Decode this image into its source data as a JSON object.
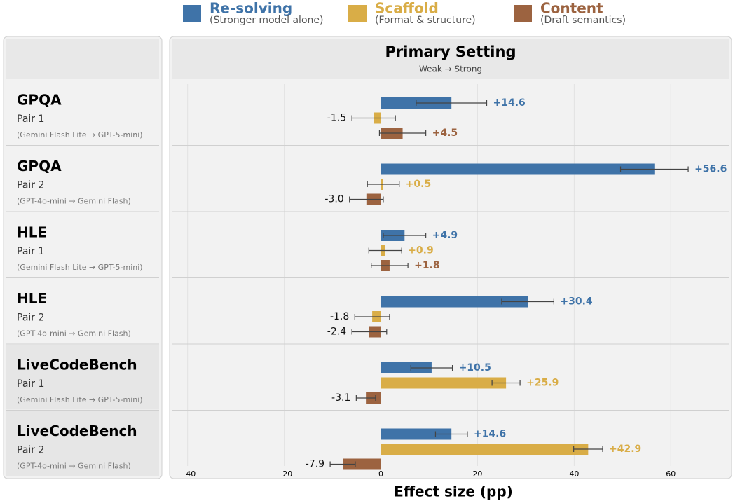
{
  "chart_data": {
    "type": "bar",
    "orientation": "horizontal",
    "title": "Primary Setting",
    "subtitle": "Weak → Strong",
    "xlabel": "Effect size (pp)",
    "categories": [
      "GPQA",
      "GPQA",
      "HLE",
      "HLE",
      "LiveCodeBench",
      "LiveCodeBench"
    ],
    "pairs": [
      "Pair 1",
      "Pair 2",
      "Pair 1",
      "Pair 2",
      "Pair 1",
      "Pair 2"
    ],
    "models": [
      "(Gemini Flash Lite → GPT-5-mini)",
      "(GPT-4o-mini → Gemini Flash)",
      "(Gemini Flash Lite → GPT-5-mini)",
      "(GPT-4o-mini → Gemini Flash)",
      "(Gemini Flash Lite → GPT-5-mini)",
      "(GPT-4o-mini → Gemini Flash)"
    ],
    "series": [
      {
        "name": "Re-solving",
        "description": "(Stronger model alone)",
        "color": "#3f73a8",
        "values": [
          14.6,
          56.6,
          4.9,
          30.4,
          10.5,
          14.6
        ],
        "errors": [
          7.3,
          7,
          4.4,
          5.4,
          4.3,
          3.3
        ],
        "value_labels": [
          "+14.6",
          "+56.6",
          "+4.9",
          "+30.4",
          "+10.5",
          "+14.6"
        ]
      },
      {
        "name": "Scaffold",
        "description": "(Format & structure)",
        "color": "#d9ad47",
        "values": [
          -1.5,
          0.5,
          0.9,
          -1.8,
          25.9,
          42.9
        ],
        "errors": [
          4.5,
          3.3,
          3.4,
          3.6,
          2.9,
          3
        ],
        "value_labels": [
          "-1.5",
          "+0.5",
          "+0.9",
          "-1.8",
          "+25.9",
          "+42.9"
        ]
      },
      {
        "name": "Content",
        "description": "(Draft semantics)",
        "color": "#9c6340",
        "values": [
          4.5,
          -3.0,
          1.8,
          -2.4,
          -3.1,
          -7.9
        ],
        "errors": [
          4.8,
          3.5,
          3.8,
          3.6,
          2,
          2.6
        ],
        "value_labels": [
          "+4.5",
          "-3.0",
          "+1.8",
          "-2.4",
          "-3.1",
          "-7.9"
        ]
      }
    ],
    "xlim": [
      -43,
      72
    ],
    "xticks": [
      {
        "value": -40,
        "label": "−40"
      },
      {
        "value": -20,
        "label": "−20"
      },
      0,
      20,
      40,
      60
    ],
    "grid": true
  }
}
